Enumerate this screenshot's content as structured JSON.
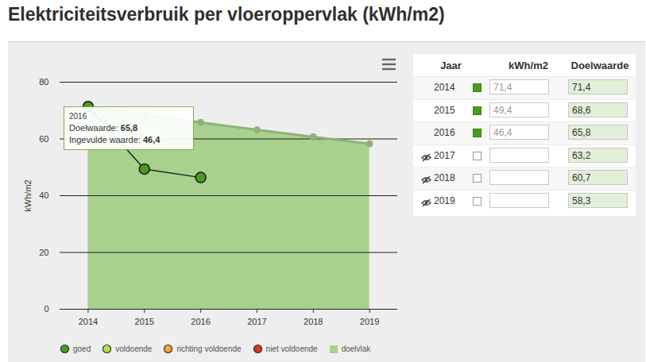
{
  "chart_data": {
    "type": "line",
    "title": "Elektriciteitsverbruik per vloeroppervlak (kWh/m2)",
    "ylabel": "kWh/m2",
    "x": [
      2014,
      2015,
      2016,
      2017,
      2018,
      2019
    ],
    "xlim": [
      2013.5,
      2019.5
    ],
    "xticks": [
      2014,
      2015,
      2016,
      2017,
      2018,
      2019
    ],
    "ylim": [
      0,
      80
    ],
    "yticks": [
      0,
      20,
      40,
      60,
      80
    ],
    "grid": true,
    "legend": "bottom",
    "legend_items": [
      {
        "name": "goed",
        "color": "#4b9b1f",
        "marker": "circle"
      },
      {
        "name": "voldoende",
        "color": "#b5e04b",
        "marker": "circle"
      },
      {
        "name": "richting voldoende",
        "color": "#f0a830",
        "marker": "circle"
      },
      {
        "name": "niet voldoende",
        "color": "#e03020",
        "marker": "circle"
      },
      {
        "name": "doelvlak",
        "color": "#a9d18e",
        "marker": "square"
      }
    ],
    "series": [
      {
        "name": "Doelwaarde",
        "type": "area",
        "color": "#a9d18e",
        "marker": "circle",
        "values": [
          71.4,
          68.6,
          65.8,
          63.2,
          60.7,
          58.3
        ],
        "value_labels": [
          "71,4",
          "68,6",
          "65,8",
          "63,2",
          "60,7",
          "58,3"
        ]
      },
      {
        "name": "Ingevulde waarde",
        "type": "line",
        "color": "#4b9b1f",
        "marker": "circle",
        "line_style": "solid",
        "values": [
          71.4,
          49.4,
          46.4,
          null,
          null,
          null
        ],
        "value_labels": [
          "71,4",
          "49,4",
          "46,4",
          null,
          null,
          null
        ]
      }
    ],
    "annotations": [
      {
        "x": 2016,
        "title": "2016",
        "items": [
          {
            "label": "Doelwaarde:",
            "value": 65.8,
            "value_label": "65,8"
          },
          {
            "label": "Ingevulde waarde:",
            "value": 46.4,
            "value_label": "46,4"
          }
        ]
      }
    ]
  },
  "table": {
    "columns": [
      "Jaar",
      "kWh/m2",
      "Doelwaarde"
    ]
  }
}
